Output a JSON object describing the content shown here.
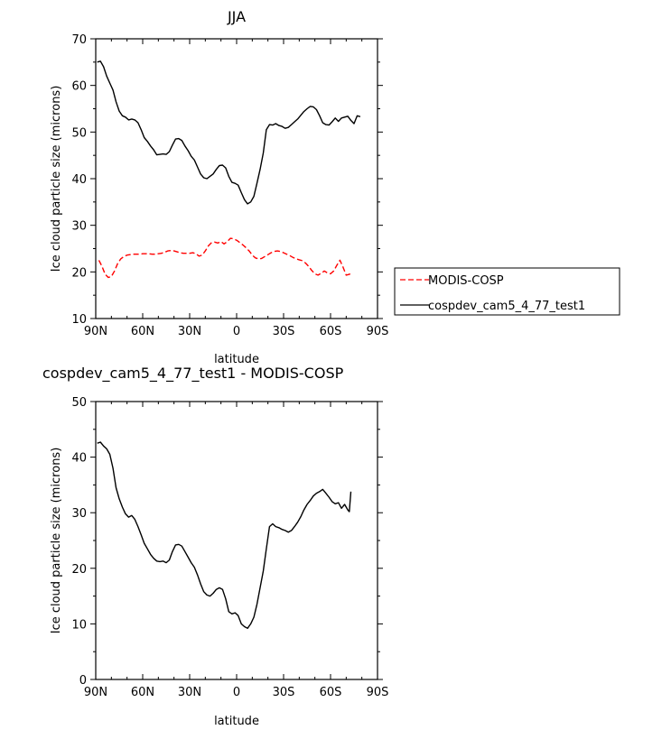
{
  "chart_data": [
    {
      "type": "line",
      "title": "JJA",
      "xlabel": "latitude",
      "ylabel": "Ice cloud particle size (microns)",
      "xlim": [
        90,
        -90
      ],
      "ylim": [
        10,
        70
      ],
      "x_tick_values": [
        90,
        60,
        30,
        0,
        -30,
        -60,
        -90
      ],
      "x_tick_labels": [
        "90N",
        "60N",
        "30N",
        "0",
        "30S",
        "60S",
        "90S"
      ],
      "y_tick_values": [
        10,
        20,
        30,
        40,
        50,
        60,
        70
      ],
      "y_tick_labels": [
        "10",
        "20",
        "30",
        "40",
        "50",
        "60",
        "70"
      ],
      "legend": {
        "placement": "right",
        "entries": [
          "MODIS-COSP",
          "cospdev_cam5_4_77_test1"
        ]
      },
      "series": [
        {
          "name": "cospdev_cam5_4_77_test1",
          "color": "#000000",
          "dash": "solid",
          "x": [
            89,
            87,
            85,
            83,
            81,
            79,
            77,
            75,
            73,
            71,
            69,
            67,
            65,
            63,
            61,
            59,
            57,
            55,
            53,
            51,
            49,
            47,
            45,
            43,
            41,
            39,
            37,
            35,
            33,
            31,
            29,
            27,
            25,
            23,
            21,
            19,
            17,
            15,
            13,
            11,
            9,
            7,
            5,
            3,
            1,
            -1,
            -3,
            -5,
            -7,
            -9,
            -11,
            -13,
            -15,
            -17,
            -19,
            -21,
            -23,
            -25,
            -27,
            -29,
            -31,
            -33,
            -35,
            -37,
            -39,
            -41,
            -43,
            -45,
            -47,
            -49,
            -51,
            -53,
            -55,
            -57,
            -59,
            -61,
            -63,
            -65,
            -67,
            -69,
            -71,
            -73,
            -75,
            -77,
            -79
          ],
          "y": [
            65.0,
            65.2,
            64.0,
            62.0,
            60.5,
            59.0,
            56.5,
            54.5,
            53.5,
            53.2,
            52.6,
            52.8,
            52.6,
            52.0,
            50.5,
            48.8,
            48.0,
            47.0,
            46.2,
            45.1,
            45.2,
            45.3,
            45.2,
            45.8,
            47.2,
            48.5,
            48.6,
            48.2,
            47.0,
            46.0,
            44.8,
            44.0,
            42.5,
            41.0,
            40.2,
            40.0,
            40.5,
            41.0,
            42.0,
            42.8,
            42.9,
            42.3,
            40.5,
            39.2,
            39.0,
            38.6,
            37.0,
            35.5,
            34.6,
            35.0,
            36.2,
            39.0,
            42.0,
            45.5,
            50.5,
            51.6,
            51.5,
            51.8,
            51.4,
            51.2,
            50.8,
            51.0,
            51.6,
            52.2,
            52.8,
            53.6,
            54.4,
            55.0,
            55.5,
            55.4,
            54.8,
            53.5,
            52.0,
            51.6,
            51.5,
            52.2,
            53.0,
            52.3,
            53.0,
            53.2,
            53.4,
            52.5,
            51.8,
            53.5,
            53.3
          ]
        },
        {
          "name": "MODIS-COSP",
          "color": "#ff0000",
          "dash": "dashed",
          "x": [
            88,
            86,
            84,
            82,
            80,
            78,
            76,
            74,
            72,
            70,
            68,
            66,
            64,
            62,
            60,
            58,
            56,
            54,
            52,
            50,
            48,
            46,
            44,
            42,
            40,
            38,
            36,
            34,
            32,
            30,
            28,
            26,
            24,
            22,
            20,
            18,
            16,
            14,
            12,
            10,
            8,
            6,
            4,
            2,
            0,
            -2,
            -4,
            -6,
            -8,
            -10,
            -12,
            -14,
            -16,
            -18,
            -20,
            -22,
            -24,
            -26,
            -28,
            -30,
            -32,
            -34,
            -36,
            -38,
            -40,
            -42,
            -44,
            -46,
            -48,
            -50,
            -52,
            -54,
            -56,
            -58,
            -60,
            -62,
            -64,
            -66,
            -68,
            -70,
            -71,
            -72,
            -73,
            -74
          ],
          "y": [
            22.5,
            21.2,
            19.5,
            18.8,
            19.0,
            20.2,
            21.8,
            22.8,
            23.3,
            23.6,
            23.7,
            23.8,
            23.8,
            23.8,
            23.9,
            23.9,
            23.9,
            23.8,
            23.8,
            23.9,
            24.0,
            24.2,
            24.5,
            24.6,
            24.5,
            24.3,
            24.1,
            24.0,
            24.0,
            24.0,
            24.1,
            23.9,
            23.4,
            23.6,
            24.5,
            25.6,
            26.3,
            26.4,
            26.2,
            26.5,
            26.0,
            26.5,
            27.2,
            27.1,
            26.8,
            26.3,
            25.8,
            25.2,
            24.5,
            23.6,
            23.0,
            22.8,
            22.9,
            23.3,
            23.7,
            24.1,
            24.4,
            24.5,
            24.4,
            24.1,
            23.8,
            23.5,
            23.1,
            22.8,
            22.6,
            22.4,
            21.9,
            21.2,
            20.3,
            19.6,
            19.3,
            19.7,
            20.2,
            19.8,
            19.6,
            20.2,
            21.4,
            22.5,
            21.0,
            19.3,
            19.4,
            19.5,
            19.6,
            19.6
          ]
        }
      ]
    },
    {
      "type": "line",
      "title": "cospdev_cam5_4_77_test1 - MODIS-COSP",
      "xlabel": "latitude",
      "ylabel": "Ice cloud particle size (microns)",
      "xlim": [
        90,
        -90
      ],
      "ylim": [
        0,
        50
      ],
      "x_tick_values": [
        90,
        60,
        30,
        0,
        -30,
        -60,
        -90
      ],
      "x_tick_labels": [
        "90N",
        "60N",
        "30N",
        "0",
        "30S",
        "60S",
        "90S"
      ],
      "y_tick_values": [
        0,
        10,
        20,
        30,
        40,
        50
      ],
      "y_tick_labels": [
        "0",
        "10",
        "20",
        "30",
        "40",
        "50"
      ],
      "series": [
        {
          "color": "#000000",
          "dash": "solid",
          "x": [
            89,
            87,
            85,
            83,
            81,
            79,
            77,
            75,
            73,
            71,
            69,
            67,
            65,
            63,
            61,
            59,
            57,
            55,
            53,
            51,
            49,
            47,
            45,
            43,
            41,
            39,
            37,
            35,
            33,
            31,
            29,
            27,
            25,
            23,
            21,
            19,
            17,
            15,
            13,
            11,
            9,
            7,
            5,
            3,
            1,
            -1,
            -3,
            -5,
            -7,
            -9,
            -11,
            -13,
            -15,
            -17,
            -19,
            -21,
            -23,
            -25,
            -27,
            -29,
            -31,
            -33,
            -35,
            -37,
            -39,
            -41,
            -43,
            -45,
            -47,
            -49,
            -51,
            -53,
            -55,
            -57,
            -59,
            -61,
            -63,
            -65,
            -67,
            -69,
            -71,
            -72,
            -73
          ],
          "y": [
            42.5,
            42.7,
            42.0,
            41.5,
            40.5,
            38.0,
            34.5,
            32.5,
            31.0,
            29.8,
            29.2,
            29.5,
            28.8,
            27.5,
            26.0,
            24.5,
            23.5,
            22.5,
            21.8,
            21.3,
            21.2,
            21.3,
            21.0,
            21.5,
            23.0,
            24.2,
            24.3,
            24.0,
            23.0,
            22.0,
            21.0,
            20.2,
            18.8,
            17.2,
            15.8,
            15.2,
            15.0,
            15.5,
            16.2,
            16.5,
            16.2,
            14.5,
            12.2,
            11.8,
            12.0,
            11.5,
            10.0,
            9.5,
            9.2,
            10.0,
            11.2,
            13.5,
            16.5,
            19.5,
            23.5,
            27.5,
            28.0,
            27.5,
            27.3,
            27.0,
            26.8,
            26.5,
            26.8,
            27.5,
            28.3,
            29.3,
            30.5,
            31.5,
            32.2,
            33.0,
            33.5,
            33.8,
            34.2,
            33.5,
            32.8,
            32.0,
            31.6,
            31.8,
            30.8,
            31.5,
            30.5,
            30.2,
            33.8
          ]
        }
      ]
    }
  ]
}
